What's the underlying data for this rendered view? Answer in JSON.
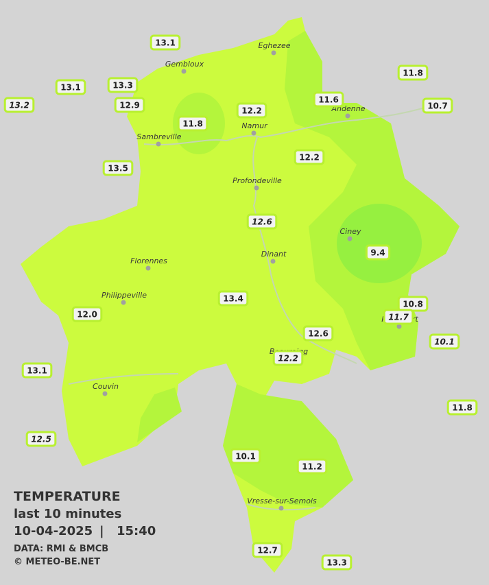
{
  "legend": {
    "title": "TEMPERATURE",
    "subtitle": "last 10 minutes",
    "date": "10-04-2025",
    "separator": "|",
    "time": "15:40",
    "source": "DATA: RMI & BMCB",
    "copyright": "© METEO-BE.NET"
  },
  "towns": [
    {
      "name": "Eghezee"
    },
    {
      "name": "Gembloux"
    },
    {
      "name": "Andenne"
    },
    {
      "name": "Namur"
    },
    {
      "name": "Sambreville"
    },
    {
      "name": "Profondeville"
    },
    {
      "name": "Ciney"
    },
    {
      "name": "Dinant"
    },
    {
      "name": "Florennes"
    },
    {
      "name": "Philippeville"
    },
    {
      "name": "Rochefort"
    },
    {
      "name": "Beauraing"
    },
    {
      "name": "Couvin"
    },
    {
      "name": "Vresse-sur-Semois"
    }
  ],
  "stations": [
    {
      "label": "13.1",
      "italic": false
    },
    {
      "label": "13.1",
      "italic": false
    },
    {
      "label": "13.2",
      "italic": true
    },
    {
      "label": "13.3",
      "italic": false
    },
    {
      "label": "12.9",
      "italic": false
    },
    {
      "label": "11.8",
      "italic": false
    },
    {
      "label": "12.2",
      "italic": false
    },
    {
      "label": "11.6",
      "italic": false
    },
    {
      "label": "11.8",
      "italic": false
    },
    {
      "label": "10.7",
      "italic": false
    },
    {
      "label": "13.5",
      "italic": false
    },
    {
      "label": "12.2",
      "italic": false
    },
    {
      "label": "12.6",
      "italic": true
    },
    {
      "label": "9.4",
      "italic": false
    },
    {
      "label": "13.4",
      "italic": false
    },
    {
      "label": "12.0",
      "italic": false
    },
    {
      "label": "10.8",
      "italic": false
    },
    {
      "label": "11.7",
      "italic": true
    },
    {
      "label": "10.1",
      "italic": true
    },
    {
      "label": "12.6",
      "italic": false
    },
    {
      "label": "12.2",
      "italic": true
    },
    {
      "label": "13.1",
      "italic": false
    },
    {
      "label": "11.8",
      "italic": false
    },
    {
      "label": "12.5",
      "italic": true
    },
    {
      "label": "10.1",
      "italic": false
    },
    {
      "label": "11.2",
      "italic": false
    },
    {
      "label": "12.7",
      "italic": false
    },
    {
      "label": "13.3",
      "italic": false
    }
  ]
}
